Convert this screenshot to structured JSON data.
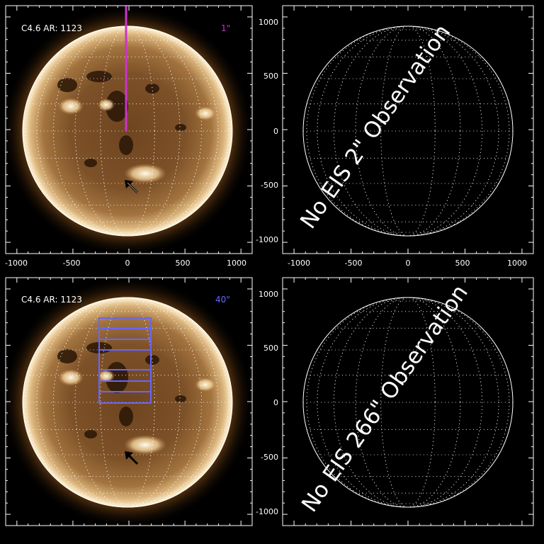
{
  "panels": {
    "top_left": {
      "event_label": "C4.6 AR: 1123",
      "slit_label": "1\"",
      "slit_color": "#cc33cc",
      "stamp": "",
      "x_ticks": [
        "-1000",
        "-500",
        "0",
        "500",
        "1000"
      ]
    },
    "top_right": {
      "message": "No EIS 2\" Observation",
      "y_ticks": [
        "1000",
        "500",
        "0",
        "-500",
        "-1000"
      ],
      "x_ticks": [
        "-1000",
        "-500",
        "0",
        "500",
        "1000"
      ]
    },
    "bottom_left": {
      "event_label": "C4.6 AR: 1123",
      "slit_label": "40\"",
      "raster_color": "#6666ff",
      "stamp": ""
    },
    "bottom_right": {
      "message": "No EIS 266\" Observation",
      "y_ticks": [
        "1000",
        "500",
        "0",
        "-500",
        "-1000"
      ]
    }
  },
  "colors": {
    "background": "#000000",
    "axes": "#ffffff",
    "sun_core": "#8a5a2a",
    "sun_limb": "#f3dcb2"
  },
  "icons": {
    "flare_arrow": "arrow-icon"
  }
}
